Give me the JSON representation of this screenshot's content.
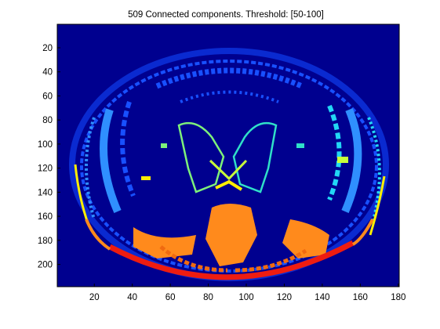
{
  "figure": {
    "title": "509 Connected components.  Threshold: [50-100]",
    "background_color": "#00008f",
    "frame_color": "#000000"
  },
  "axes": {
    "x_ticks": [
      "20",
      "40",
      "60",
      "80",
      "100",
      "120",
      "140",
      "160",
      "180"
    ],
    "y_ticks": [
      "20",
      "40",
      "60",
      "80",
      "100",
      "120",
      "140",
      "160",
      "180",
      "200"
    ]
  },
  "image": {
    "colormap": "jet",
    "colors": {
      "navy": "#00008f",
      "blue_dark": "#0020c0",
      "blue": "#1850ff",
      "azure": "#2f8fff",
      "cyan": "#22d7f5",
      "teal": "#30e0c8",
      "green": "#7df07a",
      "lime": "#c8ff3a",
      "yellow": "#ffee00",
      "orange": "#ff8a1c",
      "orange_dark": "#f06a10",
      "red": "#ee1c10"
    }
  }
}
